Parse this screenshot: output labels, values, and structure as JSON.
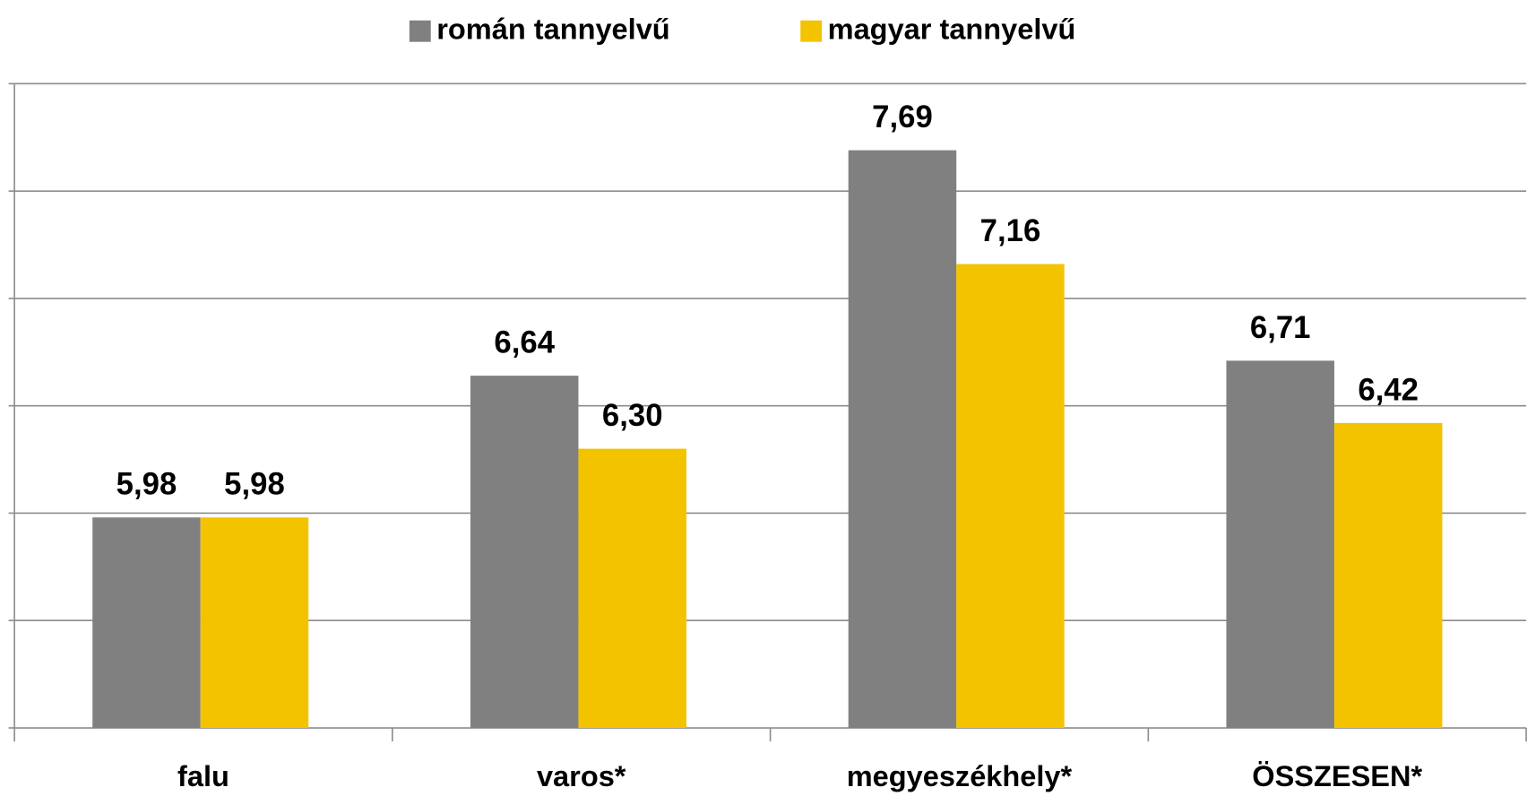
{
  "chart_data": {
    "type": "bar",
    "categories": [
      "falu",
      "varos*",
      "megyeszékhely*",
      "ÖSSZESEN*"
    ],
    "series": [
      {
        "name": "román tannyelvű",
        "color": "#808080",
        "values": [
          5.98,
          6.64,
          7.69,
          6.71
        ],
        "value_labels": [
          "5,98",
          "6,64",
          "7,69",
          "6,71"
        ]
      },
      {
        "name": "magyar tannyelvű",
        "color": "#f4c300",
        "values": [
          5.98,
          6.3,
          7.16,
          6.42
        ],
        "value_labels": [
          "5,98",
          "6,30",
          "7,16",
          "6,42"
        ]
      }
    ],
    "ylim": [
      5,
      8
    ],
    "yticks": [
      5,
      5.5,
      6,
      6.5,
      7,
      7.5,
      8
    ],
    "grid": true,
    "legend": "top"
  }
}
